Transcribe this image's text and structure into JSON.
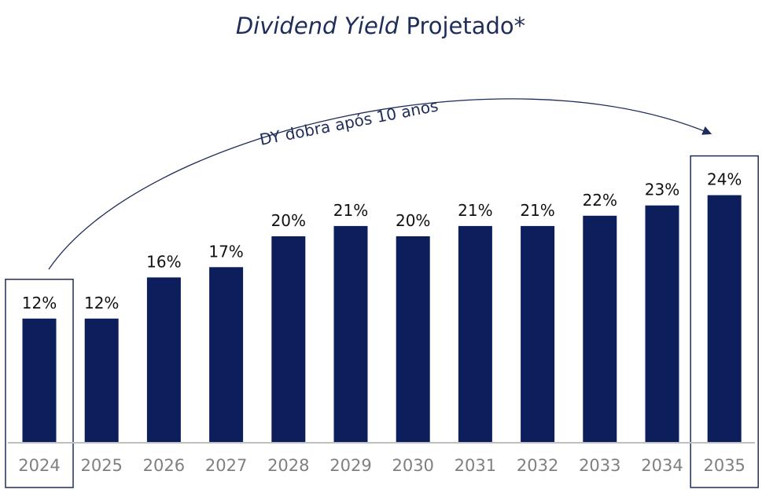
{
  "chart_data": {
    "type": "bar",
    "title_italic": "Dividend Yield",
    "title_rest": "Projetado*",
    "categories": [
      "2024",
      "2025",
      "2026",
      "2027",
      "2028",
      "2029",
      "2030",
      "2031",
      "2032",
      "2033",
      "2034",
      "2035"
    ],
    "values": [
      12,
      12,
      16,
      17,
      20,
      21,
      20,
      21,
      21,
      22,
      23,
      24
    ],
    "value_labels": [
      "12%",
      "12%",
      "16%",
      "17%",
      "20%",
      "21%",
      "20%",
      "21%",
      "21%",
      "22%",
      "23%",
      "24%"
    ],
    "annotation": "DY dobra após 10 anos",
    "highlighted": [
      "2024",
      "2035"
    ],
    "xlabel": "",
    "ylabel": "",
    "grid": false,
    "legend": "none",
    "bar_color": "#0c1f5c",
    "highlight_color": "#1f2d5a",
    "axis_color": "#bfbfbf"
  }
}
